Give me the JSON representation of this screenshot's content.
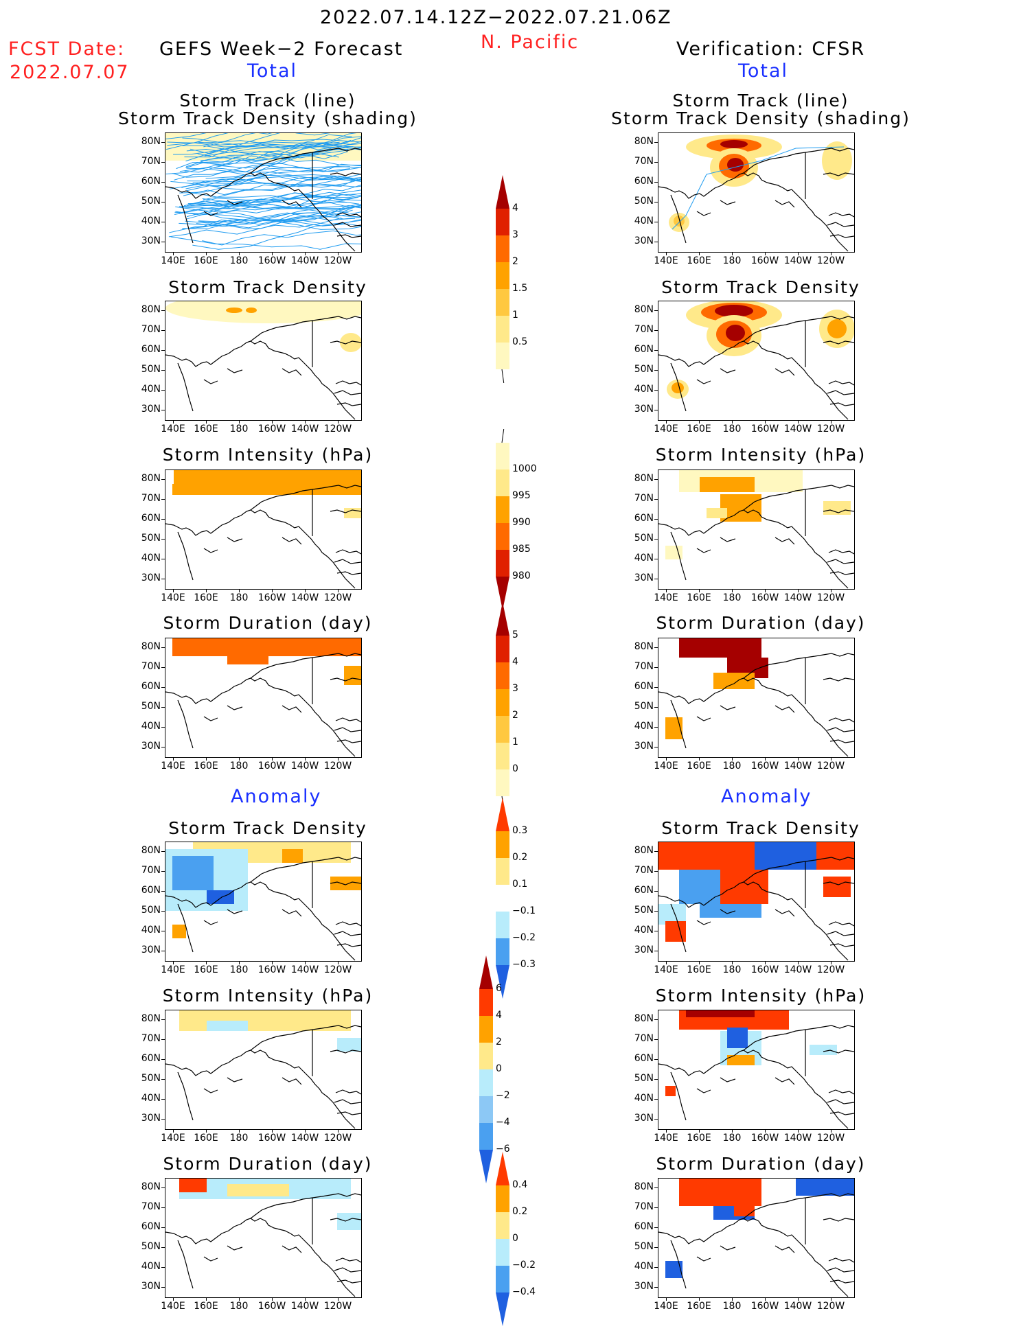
{
  "header": {
    "date_range": "2022.07.14.12Z−2022.07.21.06Z",
    "region": "N. Pacific",
    "fcst_label": "FCST Date:",
    "fcst_date": "2022.07.07",
    "left_title": "GEFS Week−2 Forecast",
    "right_title": "Verification: CFSR",
    "total_label": "Total",
    "anomaly_label": "Anomaly"
  },
  "panel_titles": {
    "track_line": "Storm Track (line)",
    "track_shading": "Storm Track Density (shading)",
    "density": "Storm Track Density",
    "intensity": "Storm Intensity (hPa)",
    "duration": "Storm Duration (day)"
  },
  "axes": {
    "lat_ticks": [
      "80N",
      "70N",
      "60N",
      "50N",
      "40N",
      "30N"
    ],
    "lon_ticks": [
      "140E",
      "160E",
      "180",
      "160W",
      "140W",
      "120W"
    ]
  },
  "colorbars": {
    "density_total": {
      "labels": [
        "4",
        "3",
        "2",
        "1.5",
        "1",
        "0.5"
      ],
      "colors": [
        "#a50000",
        "#e02000",
        "#ff6a00",
        "#ffa200",
        "#ffc840",
        "#ffe98a",
        "#fff8c0"
      ]
    },
    "intensity_total": {
      "labels": [
        "1000",
        "995",
        "990",
        "985",
        "980"
      ],
      "colors": [
        "#fff8c0",
        "#ffe98a",
        "#ffa200",
        "#ff6a00",
        "#e02000",
        "#a50000"
      ]
    },
    "duration_total": {
      "labels": [
        "5",
        "4",
        "3",
        "2",
        "1",
        "0"
      ],
      "colors": [
        "#a50000",
        "#e02000",
        "#ff6a00",
        "#ffa200",
        "#ffc840",
        "#ffe98a",
        "#fff8c0"
      ]
    },
    "density_anom": {
      "labels": [
        "0.3",
        "0.2",
        "0.1",
        "−0.1",
        "−0.2",
        "−0.3"
      ],
      "colors": [
        "#ff3a00",
        "#ffa200",
        "#ffe98a",
        "#ffffff",
        "#b8ecfb",
        "#4aa0f0",
        "#1f60e0"
      ]
    },
    "intensity_anom": {
      "labels": [
        "6",
        "4",
        "2",
        "0",
        "−2",
        "−4",
        "−6"
      ],
      "colors": [
        "#a50000",
        "#ff3a00",
        "#ffa200",
        "#ffe98a",
        "#b8ecfb",
        "#8cc8f5",
        "#4aa0f0",
        "#1f60e0"
      ]
    },
    "duration_anom": {
      "labels": [
        "0.4",
        "0.2",
        "0",
        "−0.2",
        "−0.4"
      ],
      "colors": [
        "#ff3a00",
        "#ffa200",
        "#ffe98a",
        "#b8ecfb",
        "#4aa0f0",
        "#1f60e0"
      ]
    }
  }
}
